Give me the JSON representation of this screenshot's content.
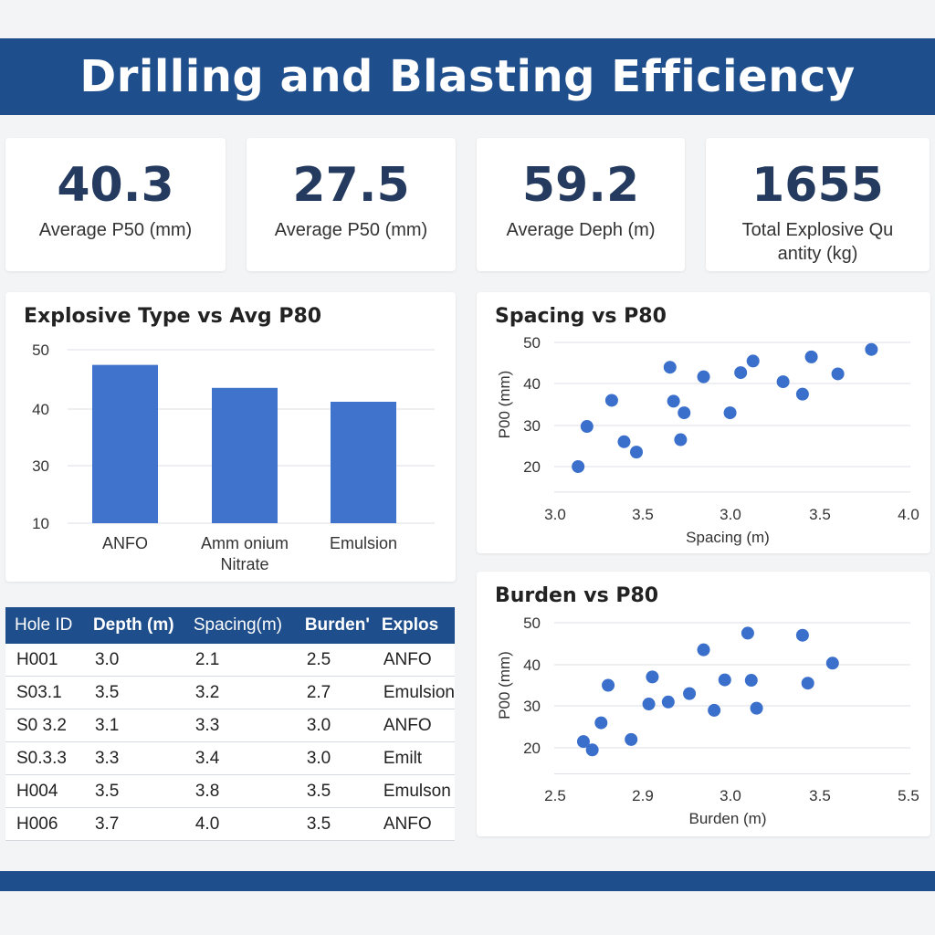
{
  "header": {
    "title": "Drilling and Blasting Efficiency"
  },
  "kpis": [
    {
      "value": "40.3",
      "label": "Average P50 (mm)"
    },
    {
      "value": "27.5",
      "label": "Average P50 (mm)"
    },
    {
      "value": "59.2",
      "label": "Average Deph (m)"
    },
    {
      "value": "1655",
      "label": "Total Explosive Qu antity (kg)"
    }
  ],
  "colors": {
    "header": "#1f4e8c",
    "bar": "#3f73cc",
    "point": "#3a6fcb"
  },
  "table": {
    "headers": [
      "Hole ID",
      "Depth (m)",
      "Spacing(m)",
      "Burden'",
      "Explos"
    ],
    "rows": [
      [
        "H001",
        "3.0",
        "2.1",
        "2.5",
        "ANFO"
      ],
      [
        "S03.1",
        "3.5",
        "3.2",
        "2.7",
        "Emulsion"
      ],
      [
        "S0 3.2",
        "3.1",
        "3.3",
        "3.0",
        "ANFO"
      ],
      [
        "S0.3.3",
        "3.3",
        "3.4",
        "3.0",
        "Emilt"
      ],
      [
        "H004",
        "3.5",
        "3.8",
        "3.5",
        "Emulson"
      ],
      [
        "H006",
        "3.7",
        "4.0",
        "3.5",
        "ANFO"
      ]
    ]
  },
  "chart_data": [
    {
      "type": "bar",
      "title": "Explosive Type vs Avg P80",
      "categories": [
        "ANFO",
        "Amm onium Nitrate",
        "Emulsion"
      ],
      "values": [
        46.5,
        41.2,
        38
      ],
      "yticks": [
        "10",
        "30",
        "40",
        "50"
      ],
      "ylim": [
        10,
        50
      ],
      "grid": true
    },
    {
      "type": "scatter",
      "title": "Spacing vs P80",
      "xlabel": "Spacing (m)",
      "ylabel": "P00 (mm)",
      "xticks": [
        "3.0",
        "3.5",
        "3.0",
        "3.5",
        "4.0"
      ],
      "yticks": [
        "20",
        "30",
        "40",
        "50"
      ],
      "ylim": [
        15,
        50
      ],
      "grid": true,
      "x": [
        0.13,
        0.18,
        0.32,
        0.39,
        0.46,
        0.65,
        0.67,
        0.71,
        0.73,
        0.84,
        0.99,
        1.05,
        1.12,
        1.29,
        1.4,
        1.45,
        1.6,
        1.79
      ],
      "y": [
        20,
        29.7,
        36,
        26,
        23.5,
        44,
        35.8,
        26.5,
        33,
        41.7,
        33,
        42.7,
        45.5,
        40.5,
        37.5,
        46.5,
        42.4,
        48.3
      ]
    },
    {
      "type": "scatter",
      "title": "Burden vs P80",
      "xlabel": "Burden (m)",
      "ylabel": "P00 (mm)",
      "xticks": [
        "2.5",
        "2.9",
        "3.0",
        "3.5",
        "5.5"
      ],
      "yticks": [
        "20",
        "30",
        "40",
        "50"
      ],
      "ylim": [
        15,
        50
      ],
      "grid": true,
      "x": [
        0.16,
        0.21,
        0.26,
        0.3,
        0.43,
        0.53,
        0.55,
        0.64,
        0.76,
        0.84,
        0.9,
        0.96,
        1.09,
        1.11,
        1.14,
        1.4,
        1.43,
        1.57
      ],
      "y": [
        21.5,
        19.5,
        26,
        35,
        22,
        30.5,
        37,
        31,
        33,
        43.5,
        29,
        36.3,
        47.5,
        36.2,
        29.5,
        47,
        35.5,
        40.3
      ]
    }
  ]
}
